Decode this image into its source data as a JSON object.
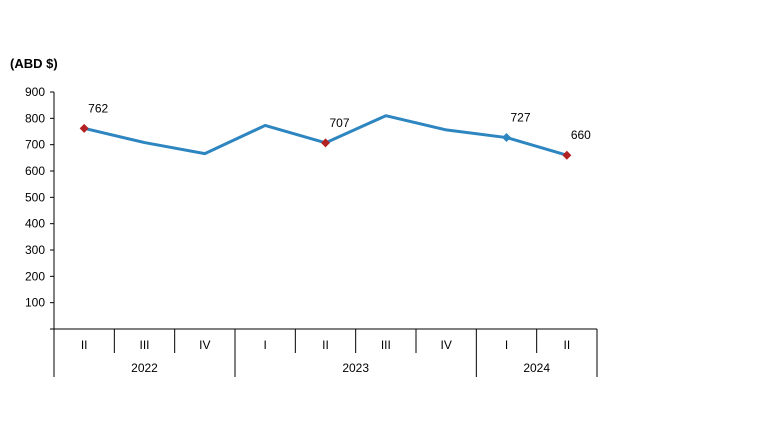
{
  "chart_data": {
    "type": "line",
    "title": "",
    "ylabel": "(ABD $)",
    "xlabel": "",
    "ylim": [
      0,
      900
    ],
    "yticks": [
      "900",
      "800",
      "700",
      "600",
      "500",
      "400",
      "300",
      "200",
      "100"
    ],
    "categories": [
      "II",
      "III",
      "IV",
      "I",
      "II",
      "III",
      "IV",
      "I",
      "II"
    ],
    "years": [
      {
        "label": "2022",
        "start": 0,
        "end": 2
      },
      {
        "label": "2023",
        "start": 3,
        "end": 6
      },
      {
        "label": "2024",
        "start": 7,
        "end": 8
      }
    ],
    "series": [
      {
        "values": [
          762,
          708,
          666,
          773,
          707,
          810,
          756,
          727,
          660
        ],
        "color": "#2e86c1"
      }
    ],
    "markers": [
      {
        "index": 0,
        "shape": "diamond",
        "color": "#b22222"
      },
      {
        "index": 4,
        "shape": "diamond",
        "color": "#b22222"
      },
      {
        "index": 7,
        "shape": "diamond",
        "color": "#2e86c1"
      },
      {
        "index": 8,
        "shape": "diamond",
        "color": "#b22222"
      }
    ],
    "data_labels": [
      {
        "index": 0,
        "text": "762"
      },
      {
        "index": 4,
        "text": "707"
      },
      {
        "index": 7,
        "text": "727"
      },
      {
        "index": 8,
        "text": "660"
      }
    ],
    "grid": false,
    "legend": "none"
  }
}
